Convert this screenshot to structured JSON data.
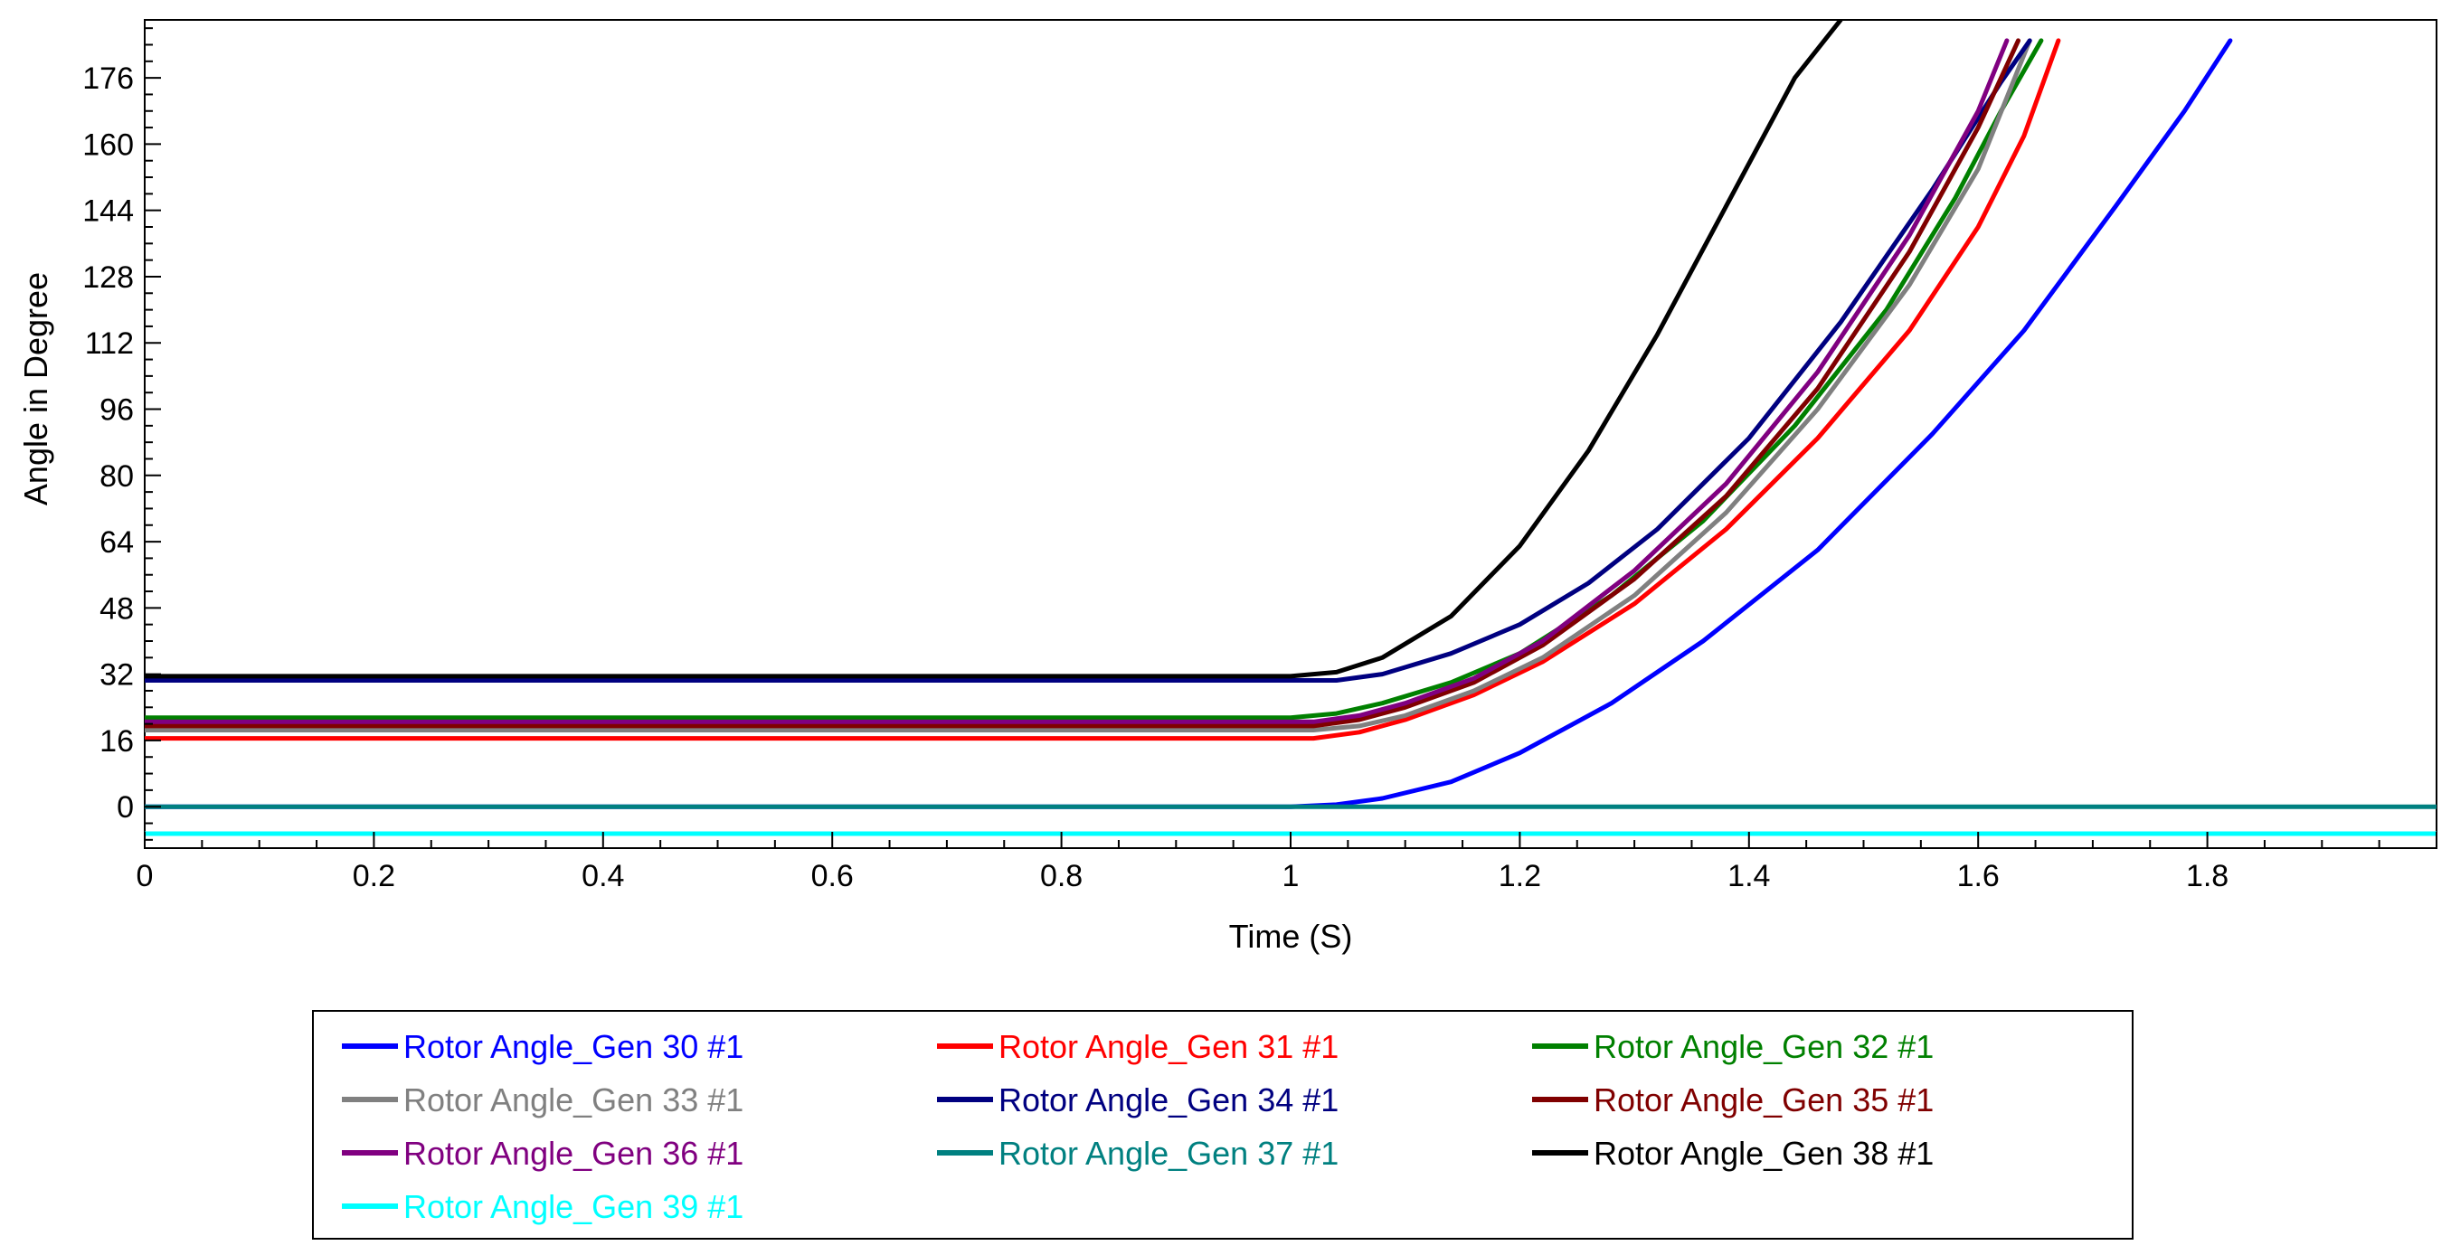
{
  "chart_data": {
    "type": "line",
    "title": "",
    "xlabel": "Time (S)",
    "ylabel": "Angle in Degree",
    "xlim": [
      0,
      2.0
    ],
    "ylim": [
      -10,
      190
    ],
    "x_ticks": [
      0,
      0.2,
      0.4,
      0.6,
      0.8,
      1,
      1.2,
      1.4,
      1.6,
      1.8
    ],
    "x_tick_labels": [
      "0",
      "0.2",
      "0.4",
      "0.6",
      "0.8",
      "1",
      "1.2",
      "1.4",
      "1.6",
      "1.8"
    ],
    "y_ticks": [
      0,
      16,
      32,
      48,
      64,
      80,
      96,
      112,
      128,
      144,
      160,
      176
    ],
    "y_tick_labels": [
      "0",
      "16",
      "32",
      "48",
      "64",
      "80",
      "96",
      "112",
      "128",
      "144",
      "160",
      "176"
    ],
    "grid": false,
    "legend_position": "bottom",
    "series": [
      {
        "name": "Rotor Angle_Gen 30 #1",
        "color": "#0000ff",
        "x": [
          0,
          1.0,
          1.04,
          1.08,
          1.14,
          1.2,
          1.28,
          1.36,
          1.46,
          1.56,
          1.64,
          1.72,
          1.78,
          1.82
        ],
        "y": [
          0,
          0,
          0.5,
          2,
          6,
          13,
          25,
          40,
          62,
          90,
          115,
          145,
          168,
          185
        ]
      },
      {
        "name": "Rotor Angle_Gen 31 #1",
        "color": "#ff0000",
        "x": [
          0,
          1.02,
          1.06,
          1.1,
          1.16,
          1.22,
          1.3,
          1.38,
          1.46,
          1.54,
          1.6,
          1.64,
          1.67
        ],
        "y": [
          16.5,
          16.5,
          18,
          21,
          27,
          35,
          49,
          67,
          89,
          115,
          140,
          162,
          185
        ]
      },
      {
        "name": "Rotor Angle_Gen 32 #1",
        "color": "#008000",
        "x": [
          0,
          1.0,
          1.04,
          1.08,
          1.14,
          1.2,
          1.28,
          1.36,
          1.44,
          1.52,
          1.58,
          1.62,
          1.655
        ],
        "y": [
          21.5,
          21.5,
          22.5,
          25,
          30,
          37,
          51,
          69,
          92,
          120,
          147,
          168,
          185
        ]
      },
      {
        "name": "Rotor Angle_Gen 33 #1",
        "color": "#808080",
        "x": [
          0,
          1.02,
          1.06,
          1.1,
          1.16,
          1.22,
          1.3,
          1.38,
          1.46,
          1.54,
          1.6,
          1.645
        ],
        "y": [
          18.5,
          18.5,
          19.5,
          22,
          28,
          36,
          51,
          71,
          96,
          126,
          154,
          185
        ]
      },
      {
        "name": "Rotor Angle_Gen 34 #1",
        "color": "#000080",
        "x": [
          0,
          1.04,
          1.08,
          1.14,
          1.2,
          1.26,
          1.32,
          1.4,
          1.48,
          1.56,
          1.62,
          1.645
        ],
        "y": [
          30.5,
          30.5,
          32,
          37,
          44,
          54,
          67,
          89,
          117,
          149,
          175,
          185
        ]
      },
      {
        "name": "Rotor Angle_Gen 35 #1",
        "color": "#800000",
        "x": [
          0,
          1.02,
          1.06,
          1.1,
          1.16,
          1.22,
          1.3,
          1.38,
          1.46,
          1.54,
          1.6,
          1.635
        ],
        "y": [
          19.5,
          19.5,
          21,
          24,
          30,
          39,
          55,
          75,
          101,
          134,
          164,
          185
        ]
      },
      {
        "name": "Rotor Angle_Gen 36 #1",
        "color": "#800080",
        "x": [
          0,
          1.02,
          1.06,
          1.1,
          1.16,
          1.22,
          1.3,
          1.38,
          1.46,
          1.54,
          1.6,
          1.625
        ],
        "y": [
          20.5,
          20.5,
          22,
          25,
          31,
          40,
          57,
          78,
          105,
          138,
          168,
          185
        ]
      },
      {
        "name": "Rotor Angle_Gen 37 #1",
        "color": "#008080",
        "x": [
          0,
          2.0
        ],
        "y": [
          0,
          0
        ]
      },
      {
        "name": "Rotor Angle_Gen 38 #1",
        "color": "#000000",
        "x": [
          0,
          1.0,
          1.04,
          1.08,
          1.14,
          1.2,
          1.26,
          1.32,
          1.38,
          1.44,
          1.48
        ],
        "y": [
          31.5,
          31.5,
          32.5,
          36,
          46,
          63,
          86,
          114,
          145,
          176,
          190
        ]
      },
      {
        "name": "Rotor Angle_Gen 39 #1",
        "color": "#00ffff",
        "x": [
          0,
          2.0
        ],
        "y": [
          -6.5,
          -6.5
        ]
      }
    ]
  }
}
